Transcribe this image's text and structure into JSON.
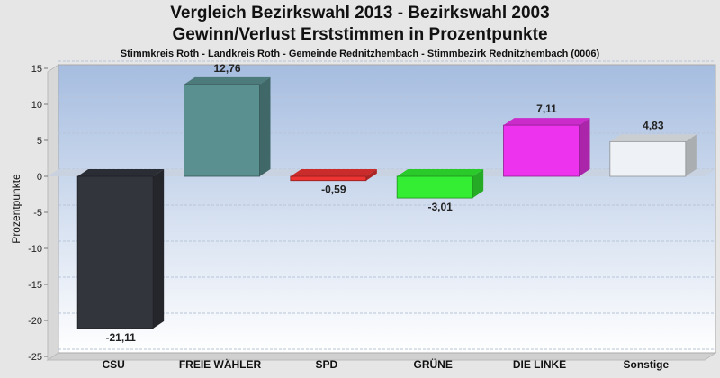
{
  "chart_data": {
    "type": "bar",
    "title": "Vergleich Bezirkswahl 2013 - Bezirkswahl 2003",
    "title_line2": "Gewinn/Verlust Erststimmen in Prozentpunkte",
    "subtitle": "Stimmkreis Roth - Landkreis Roth - Gemeinde Rednitzhembach - Stimmbezirk Rednitzhembach (0006)",
    "ylabel": "Prozentpunkte",
    "xlabel": "",
    "ylim": [
      -25,
      15
    ],
    "yticks": [
      15,
      10,
      5,
      0,
      -5,
      -10,
      -15,
      -20,
      -25
    ],
    "grid": true,
    "categories": [
      "CSU",
      "FREIE WÄHLER",
      "SPD",
      "GRÜNE",
      "DIE LINKE",
      "Sonstige"
    ],
    "values": [
      -21.11,
      12.76,
      -0.59,
      -3.01,
      7.11,
      4.83
    ],
    "value_labels": [
      "-21,11",
      "12,76",
      "-0,59",
      "-3,01",
      "7,11",
      "4,83"
    ],
    "colors": [
      "#33353d",
      "#5a9090",
      "#ee3333",
      "#33ee33",
      "#ee33ee",
      "#eef2f6"
    ]
  }
}
